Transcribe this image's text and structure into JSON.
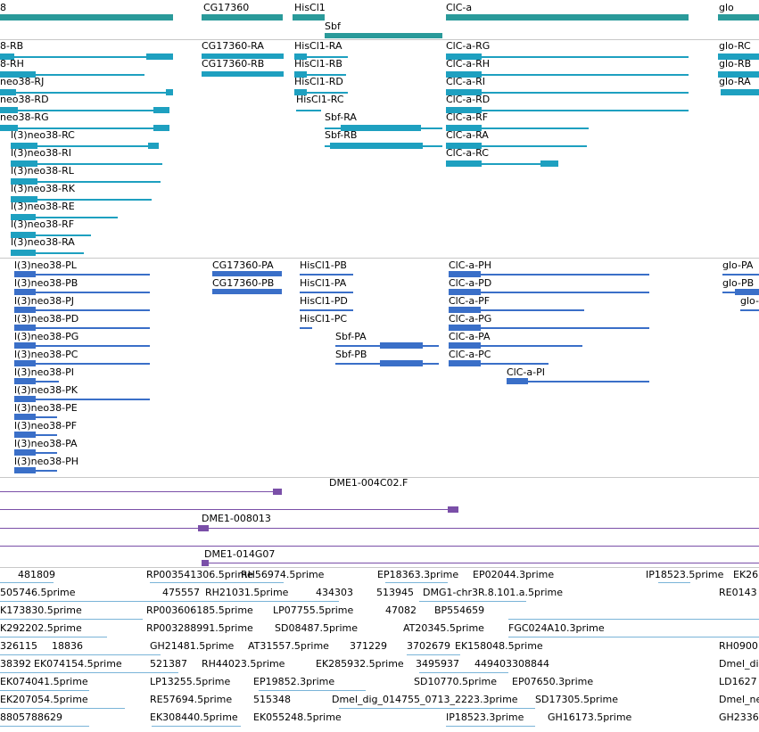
{
  "gene_track": {
    "labels": [
      "8",
      "CG17360",
      "HisCl1",
      "ClC-a",
      "glo",
      "Sbf"
    ]
  },
  "transcripts_rna": {
    "labels": [
      "8-RB",
      "8-RH",
      "neo38-RJ",
      "neo38-RD",
      "neo38-RG",
      "l(3)neo38-RC",
      "l(3)neo38-RI",
      "l(3)neo38-RL",
      "l(3)neo38-RK",
      "l(3)neo38-RE",
      "l(3)neo38-RF",
      "l(3)neo38-RA",
      "CG17360-RA",
      "CG17360-RB",
      "HisCl1-RA",
      "HisCl1-RB",
      "HisCl1-RD",
      "HisCl1-RC",
      "Sbf-RA",
      "Sbf-RB",
      "ClC-a-RG",
      "ClC-a-RH",
      "ClC-a-RI",
      "ClC-a-RD",
      "ClC-a-RF",
      "ClC-a-RA",
      "ClC-a-RC",
      "glo-RC",
      "glo-RB",
      "glo-RA"
    ]
  },
  "transcripts_protein": {
    "labels": [
      "l(3)neo38-PL",
      "l(3)neo38-PB",
      "l(3)neo38-PJ",
      "l(3)neo38-PD",
      "l(3)neo38-PG",
      "l(3)neo38-PC",
      "l(3)neo38-PI",
      "l(3)neo38-PK",
      "l(3)neo38-PE",
      "l(3)neo38-PF",
      "l(3)neo38-PA",
      "l(3)neo38-PH",
      "CG17360-PA",
      "CG17360-PB",
      "HisCl1-PB",
      "HisCl1-PA",
      "HisCl1-PD",
      "HisCl1-PC",
      "Sbf-PA",
      "Sbf-PB",
      "ClC-a-PH",
      "ClC-a-PD",
      "ClC-a-PF",
      "ClC-a-PG",
      "ClC-a-PA",
      "ClC-a-PC",
      "ClC-a-PI",
      "glo-PA",
      "glo-PB",
      "glo-"
    ]
  },
  "clone_track": {
    "labels": [
      "DME1-004C02.F",
      "DME1-008013",
      "DME1-014G07"
    ]
  },
  "est_track": {
    "labels": [
      "481809",
      "RP003541306.5prime",
      "RH56974.5prime",
      "EP18363.3prime",
      "EP02044.3prime",
      "IP18523.5prime",
      "EK26",
      "505746.5prime",
      "475557",
      "RH21031.5prime",
      "434303",
      "513945",
      "DMG1-chr3R.8.101.a.5prime",
      "RE0143",
      "K173830.5prime",
      "RP003606185.5prime",
      "LP07755.5prime",
      "47082",
      "BP554659",
      "K292202.5prime",
      "RP003288991.5prime",
      "SD08487.5prime",
      "AT20345.5prime",
      "FGC024A10.3prime",
      "326115",
      "18836",
      "GH21481.5prime",
      "AT31557.5prime",
      "371229",
      "3702679",
      "EK158048.5prime",
      "RH0900",
      "38392",
      "EK074154.5prime",
      "521387",
      "RH44023.5prime",
      "EK285932.5prime",
      "3495937",
      "449403308844",
      "Dmel_di",
      "EK074041.5prime",
      "LP13255.5prime",
      "EP19852.3prime",
      "SD10770.5prime",
      "EP07650.3prime",
      "LD1627",
      "EK207054.5prime",
      "RE57694.5prime",
      "515348",
      "Dmel_dig_014755_0713_2223.3prime",
      "SD17305.5prime",
      "Dmel_ne",
      "8805788629",
      "EK308440.5prime",
      "EK055248.5prime",
      "IP18523.3prime",
      "GH16173.5prime",
      "GH2336"
    ]
  },
  "colors": {
    "gene": "#2a9a9a",
    "rna": "#1ea0c0",
    "protein": "#3a6fc8",
    "clone": "#7a4fa8",
    "est": "#7ab4d8",
    "separator": "#c8c8c8"
  }
}
